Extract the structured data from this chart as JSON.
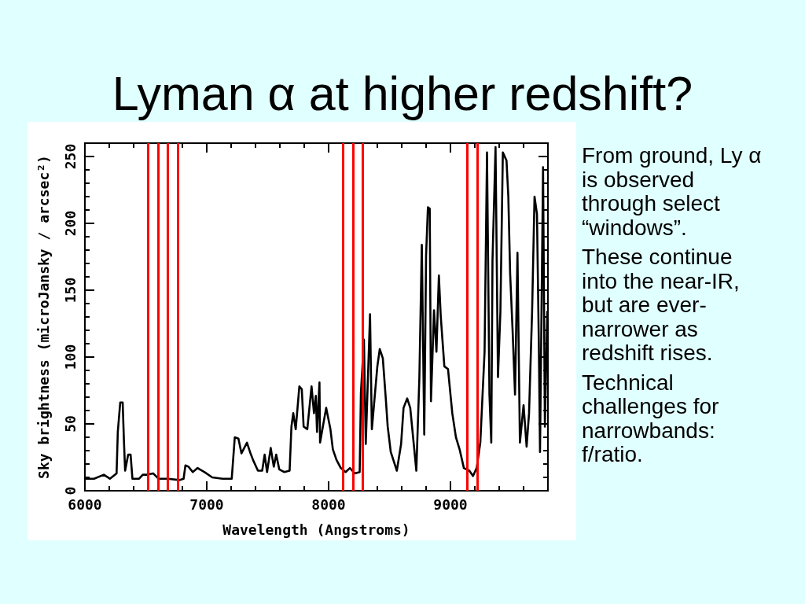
{
  "chart_data": {
    "type": "line",
    "title": "Lyman α at higher redshift?",
    "xlabel": "Wavelength (Angstroms)",
    "ylabel": "Sky brightness (microJansky / arcsec²)",
    "annotations": [
      "From ground, Ly α is observed through select “windows”.",
      "These continue into the near-IR, but are ever-narrower as redshift rises.",
      "Technical challenges for narrowbands: f/ratio."
    ],
    "x": [
      6010,
      6075,
      6155,
      6205,
      6260,
      6270,
      6290,
      6310,
      6320,
      6330,
      6355,
      6375,
      6390,
      6445,
      6475,
      6510,
      6560,
      6605,
      6680,
      6775,
      6810,
      6825,
      6850,
      6885,
      6925,
      6980,
      7045,
      7130,
      7205,
      7230,
      7260,
      7285,
      7330,
      7355,
      7380,
      7420,
      7455,
      7475,
      7495,
      7525,
      7550,
      7570,
      7595,
      7635,
      7680,
      7695,
      7710,
      7730,
      7760,
      7780,
      7795,
      7825,
      7860,
      7880,
      7895,
      7905,
      7925,
      7930,
      7980,
      8015,
      8035,
      8065,
      8100,
      8140,
      8175,
      8215,
      8255,
      8265,
      8290,
      8305,
      8340,
      8355,
      8400,
      8420,
      8445,
      8470,
      8485,
      8510,
      8560,
      8595,
      8615,
      8645,
      8670,
      8720,
      8745,
      8765,
      8785,
      8800,
      8815,
      8830,
      8840,
      8865,
      8885,
      8905,
      8920,
      8950,
      8980,
      9015,
      9045,
      9075,
      9110,
      9155,
      9185,
      9215,
      9245,
      9280,
      9300,
      9320,
      9335,
      9345,
      9370,
      9390,
      9410,
      9430,
      9460,
      9475,
      9490,
      9510,
      9530,
      9550,
      9570,
      9600,
      9625,
      9645,
      9670,
      9690,
      9710,
      9725,
      9735,
      9760,
      9775,
      9795
    ],
    "series": [
      {
        "color": "#000000",
        "values": [
          9,
          9,
          12,
          9,
          13,
          44,
          66,
          66,
          38,
          15,
          27,
          27,
          9,
          9,
          12,
          12,
          13,
          9,
          9,
          8,
          9,
          19,
          18,
          14,
          17,
          14,
          10,
          9,
          9,
          40,
          39,
          28,
          36,
          29,
          23,
          15,
          15,
          27,
          14,
          32,
          18,
          27,
          16,
          14,
          15,
          48,
          58,
          46,
          78,
          76,
          48,
          46,
          78,
          58,
          71,
          44,
          81,
          36,
          62,
          46,
          31,
          23,
          17,
          14,
          17,
          13,
          14,
          73,
          113,
          35,
          132,
          46,
          93,
          106,
          99,
          68,
          48,
          29,
          15,
          35,
          62,
          69,
          62,
          15,
          85,
          184,
          42,
          176,
          212,
          211,
          67,
          135,
          104,
          161,
          131,
          93,
          91,
          58,
          40,
          31,
          17,
          15,
          11,
          17,
          36,
          104,
          253,
          72,
          36,
          172,
          257,
          85,
          134,
          253,
          247,
          220,
          162,
          120,
          72,
          178,
          36,
          64,
          33,
          58,
          134,
          220,
          207,
          112,
          29,
          242,
          48,
          134
        ]
      }
    ],
    "xlim": [
      6000,
      9800
    ],
    "xticks": [
      6000,
      {
        "value": 6200,
        "label": null
      },
      {
        "value": 6400,
        "label": null
      },
      {
        "value": 6600,
        "label": null
      },
      {
        "value": 6800,
        "label": null
      },
      7000,
      {
        "value": 7200,
        "label": null
      },
      {
        "value": 7400,
        "label": null
      },
      {
        "value": 7600,
        "label": null
      },
      {
        "value": 7800,
        "label": null
      },
      8000,
      {
        "value": 8200,
        "label": null
      },
      {
        "value": 8400,
        "label": null
      },
      {
        "value": 8600,
        "label": null
      },
      {
        "value": 8800,
        "label": null
      },
      9000,
      {
        "value": 9200,
        "label": null
      },
      {
        "value": 9400,
        "label": null
      },
      {
        "value": 9600,
        "label": null
      }
    ],
    "ylim": [
      0,
      260
    ],
    "yticks": [
      0,
      {
        "value": 10,
        "label": null
      },
      {
        "value": 20,
        "label": null
      },
      {
        "value": 30,
        "label": null
      },
      {
        "value": 40,
        "label": null
      },
      50,
      {
        "value": 60,
        "label": null
      },
      {
        "value": 70,
        "label": null
      },
      {
        "value": 80,
        "label": null
      },
      {
        "value": 90,
        "label": null
      },
      100,
      {
        "value": 110,
        "label": null
      },
      {
        "value": 120,
        "label": null
      },
      {
        "value": 130,
        "label": null
      },
      {
        "value": 140,
        "label": null
      },
      150,
      {
        "value": 160,
        "label": null
      },
      {
        "value": 170,
        "label": null
      },
      {
        "value": 180,
        "label": null
      },
      {
        "value": 190,
        "label": null
      },
      200,
      {
        "value": 210,
        "label": null
      },
      {
        "value": 220,
        "label": null
      },
      {
        "value": 230,
        "label": null
      },
      {
        "value": 240,
        "label": null
      },
      250
    ],
    "ref_lines": [
      {
        "axis": "x",
        "value": 6520,
        "color": "#ff0000"
      },
      {
        "axis": "x",
        "value": 6600,
        "color": "#ff0000"
      },
      {
        "axis": "x",
        "value": 6680,
        "color": "#ff0000"
      },
      {
        "axis": "x",
        "value": 6760,
        "color": "#ff0000"
      },
      {
        "axis": "x",
        "value": 8120,
        "color": "#ff0000"
      },
      {
        "axis": "x",
        "value": 8200,
        "color": "#ff0000"
      },
      {
        "axis": "x",
        "value": 8280,
        "color": "#ff0000"
      },
      {
        "axis": "x",
        "value": 9140,
        "color": "#ff0000"
      },
      {
        "axis": "x",
        "value": 9220,
        "color": "#ff0000"
      }
    ]
  }
}
